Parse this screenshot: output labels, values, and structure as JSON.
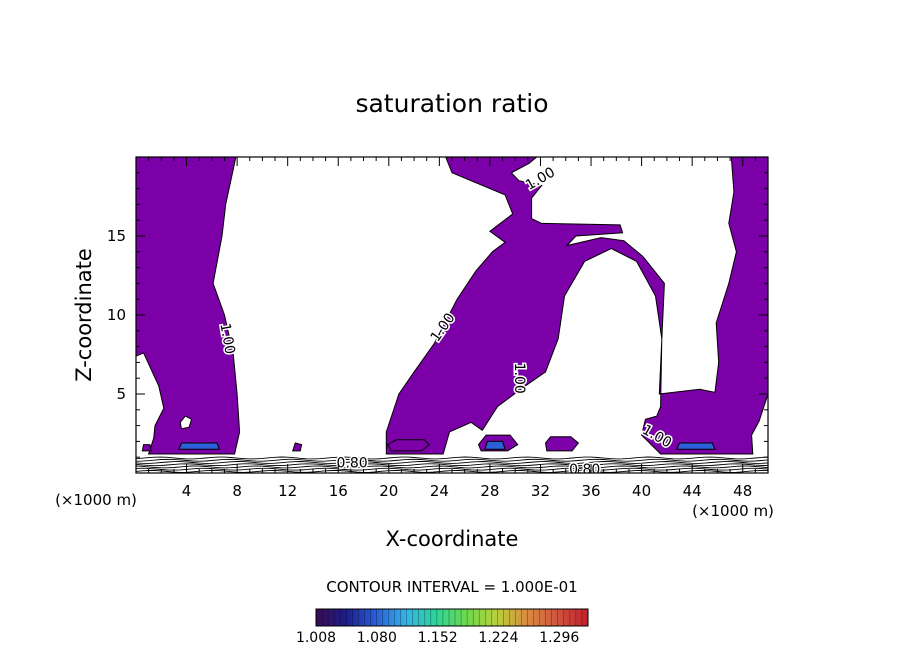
{
  "chart_data": {
    "type": "heatmap",
    "title": "saturation ratio",
    "xlabel": "X-coordinate",
    "ylabel": "Z-coordinate",
    "x_unit_left": "(×1000 m)",
    "x_unit_right": "(×1000 m)",
    "xlim": [
      0,
      50
    ],
    "ylim": [
      0,
      20
    ],
    "x_ticks": [
      4,
      8,
      12,
      16,
      20,
      24,
      28,
      32,
      36,
      40,
      44,
      48
    ],
    "y_ticks": [
      5,
      10,
      15
    ],
    "contour_interval_text": "CONTOUR INTERVAL = 1.000E-01",
    "contour_labels": [
      {
        "text": "1.00",
        "x": 7.2,
        "z": 8.5,
        "angle": 80
      },
      {
        "text": "1.00",
        "x": 24.3,
        "z": 9.2,
        "angle": -55
      },
      {
        "text": "1.00",
        "x": 30.3,
        "z": 6.0,
        "angle": 90
      },
      {
        "text": "1.00",
        "x": 32.0,
        "z": 18.6,
        "angle": -30
      },
      {
        "text": "1.00",
        "x": 41.2,
        "z": 2.3,
        "angle": 30
      },
      {
        "text": "0.80",
        "x": 17.1,
        "z": 0.6,
        "angle": 0
      },
      {
        "text": "0.80",
        "x": 35.5,
        "z": 0.2,
        "angle": 0
      }
    ],
    "colorbar": {
      "min": 1.008,
      "max": 1.33,
      "tick_values": [
        1.008,
        1.08,
        1.152,
        1.224,
        1.296
      ],
      "tick_labels": [
        "1.008",
        "1.080",
        "1.152",
        "1.224",
        "1.296"
      ]
    },
    "colors": {
      "fill": "#7c00a8",
      "colorbar_stops": [
        "#3a0a52",
        "#1c1d8a",
        "#2a5fd8",
        "#35b4e6",
        "#2ed498",
        "#6fd94a",
        "#b9cf3c",
        "#d98a40",
        "#d0533f",
        "#c41f2a"
      ]
    },
    "regions": [
      {
        "name": "saturated-plume-left",
        "value": 1.008,
        "points": [
          [
            0,
            20
          ],
          [
            7.9,
            20
          ],
          [
            7.1,
            17
          ],
          [
            6.8,
            15
          ],
          [
            6.1,
            12
          ],
          [
            7.0,
            10
          ],
          [
            7.7,
            7.5
          ],
          [
            8.0,
            5
          ],
          [
            8.2,
            2.6
          ],
          [
            7.8,
            1.2
          ],
          [
            1.0,
            1.2
          ],
          [
            1.4,
            2.2
          ],
          [
            1.5,
            3
          ],
          [
            2.2,
            4.1
          ],
          [
            1.8,
            5.5
          ],
          [
            0.6,
            7.6
          ],
          [
            0,
            7.4
          ]
        ]
      },
      {
        "name": "saturated-plume-center",
        "value": 1.008,
        "points": [
          [
            24.3,
            1.2
          ],
          [
            24.8,
            2.6
          ],
          [
            26.5,
            3.2
          ],
          [
            27.4,
            2.7
          ],
          [
            28.6,
            4.2
          ],
          [
            30.6,
            5.4
          ],
          [
            32.4,
            6.4
          ],
          [
            33.4,
            8.5
          ],
          [
            33.9,
            11.2
          ],
          [
            35.5,
            13.4
          ],
          [
            37.6,
            14.2
          ],
          [
            39.6,
            13.4
          ],
          [
            41.1,
            11.2
          ],
          [
            41.6,
            8.5
          ],
          [
            41.5,
            4.2
          ],
          [
            41.2,
            3.6
          ],
          [
            40.3,
            3.4
          ],
          [
            40.0,
            2.4
          ],
          [
            41.5,
            1.2
          ],
          [
            48.8,
            1.2
          ],
          [
            48.7,
            2.4
          ],
          [
            49.3,
            3.3
          ],
          [
            50,
            5.0
          ],
          [
            50,
            20
          ],
          [
            47.1,
            20
          ],
          [
            47.3,
            17.8
          ],
          [
            46.9,
            15.8
          ],
          [
            47.5,
            14.0
          ],
          [
            46.9,
            12.0
          ],
          [
            45.9,
            9.5
          ],
          [
            46.1,
            7.0
          ],
          [
            45.8,
            5.1
          ],
          [
            44.6,
            5.3
          ],
          [
            41.4,
            5.0
          ],
          [
            41.8,
            12
          ],
          [
            40.1,
            13.7
          ],
          [
            38.6,
            14.7
          ],
          [
            36.8,
            14.9
          ],
          [
            34.1,
            14.4
          ],
          [
            34.8,
            15.0
          ],
          [
            38.5,
            15.2
          ],
          [
            38.3,
            15.7
          ],
          [
            32.1,
            15.8
          ],
          [
            31.3,
            16.1
          ],
          [
            31.3,
            17.4
          ],
          [
            32.1,
            18.2
          ],
          [
            30.3,
            18.5
          ],
          [
            29.7,
            19.0
          ],
          [
            31.1,
            19.6
          ],
          [
            31.7,
            20
          ],
          [
            24.5,
            20
          ],
          [
            25.0,
            19
          ],
          [
            29.2,
            17.6
          ],
          [
            29.8,
            16.4
          ],
          [
            28.0,
            15.3
          ],
          [
            29.2,
            14.6
          ],
          [
            28.2,
            14.0
          ],
          [
            26.9,
            12.8
          ],
          [
            25.4,
            11.0
          ],
          [
            23.6,
            8.2
          ],
          [
            22.0,
            6.4
          ],
          [
            20.8,
            5.0
          ],
          [
            19.8,
            2.6
          ],
          [
            19.8,
            1.2
          ]
        ]
      },
      {
        "name": "saturated-patch-a",
        "value": 1.008,
        "points": [
          [
            20.2,
            1.4
          ],
          [
            22.6,
            1.4
          ],
          [
            23.2,
            1.8
          ],
          [
            22.8,
            2.1
          ],
          [
            20.6,
            2.1
          ],
          [
            19.9,
            1.8
          ]
        ]
      },
      {
        "name": "saturated-patch-b",
        "value": 1.008,
        "points": [
          [
            27.3,
            1.4
          ],
          [
            29.4,
            1.4
          ],
          [
            30.2,
            1.8
          ],
          [
            29.6,
            2.4
          ],
          [
            27.7,
            2.4
          ],
          [
            27.1,
            1.8
          ]
        ]
      },
      {
        "name": "saturated-patch-c",
        "value": 1.008,
        "points": [
          [
            32.5,
            1.4
          ],
          [
            34.5,
            1.4
          ],
          [
            35.0,
            1.9
          ],
          [
            34.4,
            2.3
          ],
          [
            32.8,
            2.3
          ],
          [
            32.4,
            1.9
          ]
        ]
      },
      {
        "name": "saturated-speck-d",
        "value": 1.008,
        "points": [
          [
            12.4,
            1.4
          ],
          [
            13.0,
            1.4
          ],
          [
            13.1,
            1.8
          ],
          [
            12.6,
            1.9
          ]
        ]
      },
      {
        "name": "saturated-speck-e",
        "value": 1.008,
        "points": [
          [
            0.5,
            1.4
          ],
          [
            1.2,
            1.4
          ],
          [
            1.1,
            1.8
          ],
          [
            0.6,
            1.8
          ]
        ]
      },
      {
        "name": "moist-core-left",
        "value": 1.08,
        "points": [
          [
            3.4,
            1.5
          ],
          [
            6.6,
            1.5
          ],
          [
            6.4,
            1.9
          ],
          [
            3.6,
            1.9
          ]
        ]
      },
      {
        "name": "moist-core-center",
        "value": 1.08,
        "points": [
          [
            27.6,
            1.5
          ],
          [
            29.2,
            1.5
          ],
          [
            29.0,
            2.0
          ],
          [
            27.8,
            2.0
          ]
        ]
      },
      {
        "name": "moist-core-right",
        "value": 1.08,
        "points": [
          [
            42.8,
            1.5
          ],
          [
            45.8,
            1.5
          ],
          [
            45.6,
            1.9
          ],
          [
            43.0,
            1.9
          ]
        ]
      },
      {
        "name": "subsaturated-hole",
        "value": 0.8,
        "points": [
          [
            3.6,
            2.8
          ],
          [
            4.2,
            2.9
          ],
          [
            4.4,
            3.4
          ],
          [
            3.9,
            3.6
          ],
          [
            3.5,
            3.2
          ]
        ]
      }
    ],
    "unsaturated_layer_z": [
      0.1,
      0.95
    ]
  }
}
